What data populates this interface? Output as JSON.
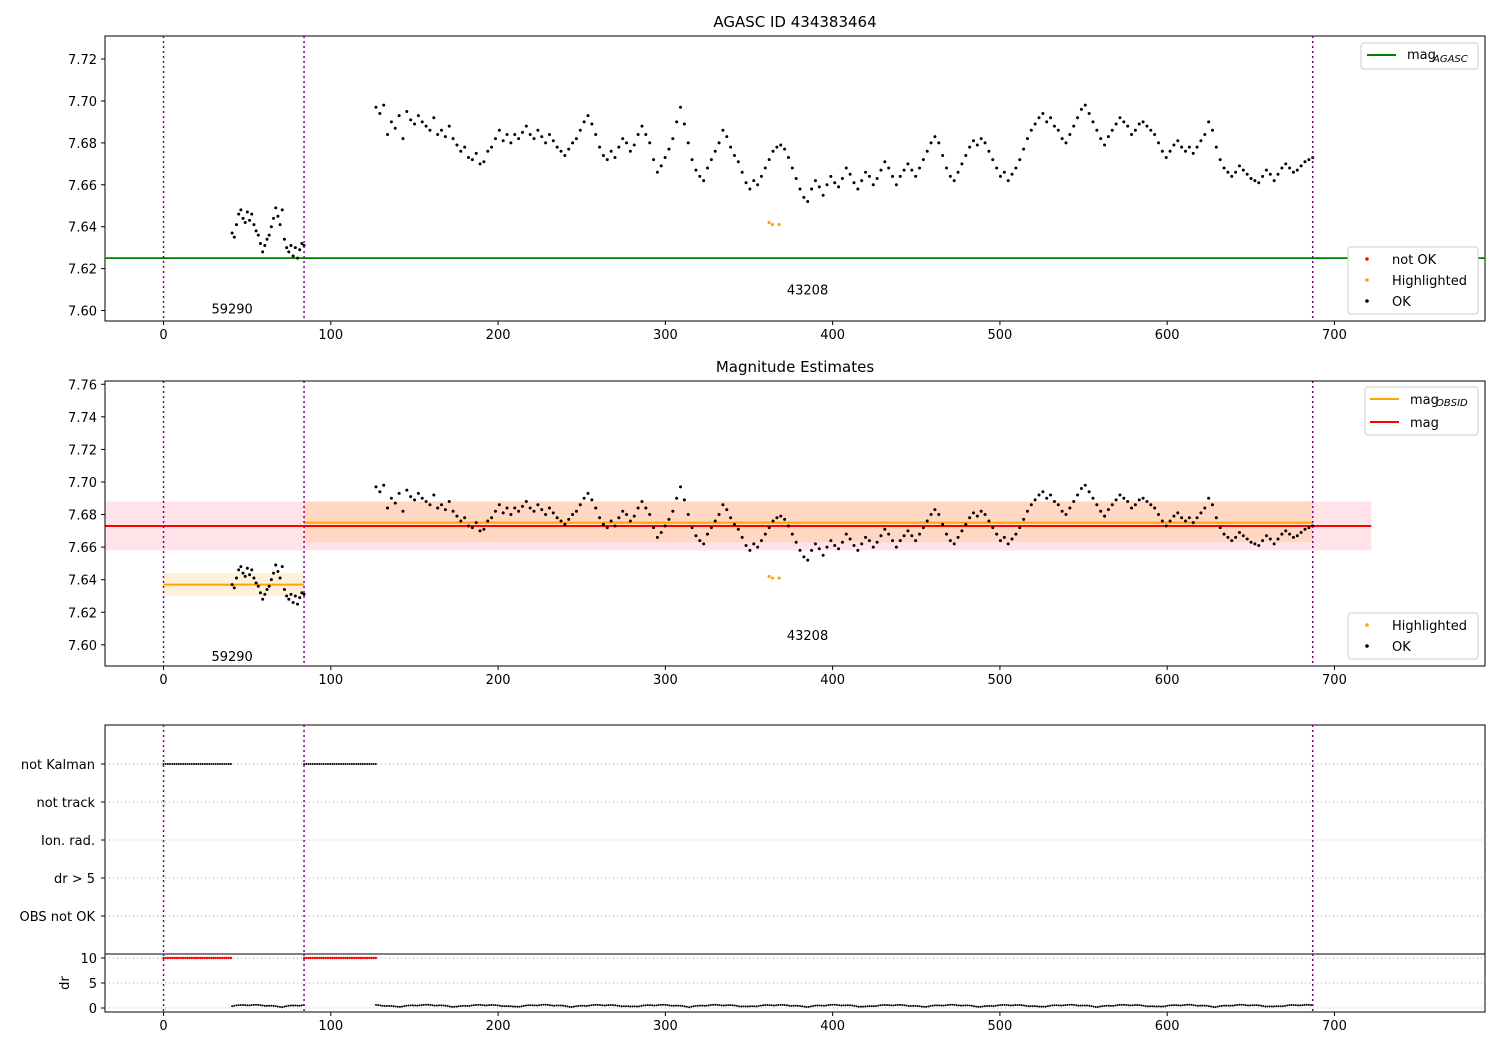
{
  "chart_data": [
    {
      "type": "scatter",
      "title": "AGASC ID 434383464",
      "xlim": [
        -35,
        790
      ],
      "ylim": [
        7.595,
        7.731
      ],
      "x_ticks": [
        "0",
        "100",
        "200",
        "300",
        "400",
        "500",
        "600",
        "700"
      ],
      "x_tick_values": [
        0,
        100,
        200,
        300,
        400,
        500,
        600,
        700
      ],
      "y_ticks": [
        "7.60",
        "7.62",
        "7.64",
        "7.66",
        "7.68",
        "7.70",
        "7.72"
      ],
      "y_tick_values": [
        7.6,
        7.62,
        7.64,
        7.66,
        7.68,
        7.7,
        7.72
      ],
      "obs_boundaries": [
        0,
        84,
        687
      ],
      "obs_labels": [
        {
          "text": "59290",
          "x": 41,
          "y": 7.601
        },
        {
          "text": "43208",
          "x": 385,
          "y": 7.61
        }
      ],
      "lines": [
        {
          "name": "mag",
          "subscript": "AGASC",
          "y": 7.625,
          "x0": -35,
          "x1": 790,
          "color": "#008000"
        }
      ],
      "legends": [
        {
          "placement": "top-right",
          "entries": [
            {
              "kind": "line",
              "label": "mag",
              "subscript": "AGASC",
              "color": "#008000"
            }
          ]
        },
        {
          "placement": "bottom-right",
          "entries": [
            {
              "kind": "point",
              "label": "not OK",
              "color": "#ff0000"
            },
            {
              "kind": "point",
              "label": "Highlighted",
              "color": "#ffa500"
            },
            {
              "kind": "point",
              "label": "OK",
              "color": "#000000"
            }
          ]
        }
      ],
      "highlighted_points": [
        [
          362,
          7.642
        ],
        [
          364,
          7.641
        ],
        [
          368,
          7.641
        ]
      ],
      "series_segments": [
        {
          "x0": 41,
          "x1": 84,
          "y": [
            7.637,
            7.635,
            7.641,
            7.646,
            7.648,
            7.644,
            7.642,
            7.647,
            7.643,
            7.646,
            7.641,
            7.638,
            7.636,
            7.632,
            7.628,
            7.631,
            7.634,
            7.636,
            7.64,
            7.644,
            7.649,
            7.645,
            7.641,
            7.648,
            7.634,
            7.63,
            7.628,
            7.631,
            7.626,
            7.63,
            7.625,
            7.629,
            7.632,
            7.631
          ]
        },
        {
          "x0": 127,
          "x1": 687,
          "y": [
            7.697,
            7.694,
            7.698,
            7.684,
            7.69,
            7.687,
            7.693,
            7.682,
            7.695,
            7.691,
            7.689,
            7.693,
            7.69,
            7.688,
            7.686,
            7.692,
            7.684,
            7.686,
            7.683,
            7.688,
            7.682,
            7.679,
            7.676,
            7.678,
            7.673,
            7.672,
            7.675,
            7.67,
            7.671,
            7.676,
            7.678,
            7.682,
            7.686,
            7.681,
            7.684,
            7.68,
            7.684,
            7.682,
            7.685,
            7.688,
            7.684,
            7.682,
            7.686,
            7.683,
            7.68,
            7.684,
            7.681,
            7.678,
            7.676,
            7.674,
            7.677,
            7.68,
            7.682,
            7.686,
            7.69,
            7.693,
            7.689,
            7.684,
            7.678,
            7.674,
            7.672,
            7.676,
            7.673,
            7.678,
            7.682,
            7.68,
            7.676,
            7.679,
            7.684,
            7.688,
            7.684,
            7.68,
            7.672,
            7.666,
            7.669,
            7.673,
            7.677,
            7.682,
            7.69,
            7.697,
            7.689,
            7.68,
            7.672,
            7.667,
            7.664,
            7.662,
            7.668,
            7.672,
            7.676,
            7.68,
            7.686,
            7.683,
            7.678,
            7.674,
            7.671,
            7.666,
            7.661,
            7.658,
            7.662,
            7.66,
            7.664,
            7.668,
            7.672,
            7.676,
            7.678,
            7.679,
            7.677,
            7.673,
            7.668,
            7.663,
            7.658,
            7.654,
            7.652,
            7.658,
            7.662,
            7.659,
            7.655,
            7.66,
            7.664,
            7.661,
            7.659,
            7.663,
            7.668,
            7.665,
            7.661,
            7.658,
            7.662,
            7.666,
            7.664,
            7.66,
            7.663,
            7.667,
            7.671,
            7.668,
            7.664,
            7.66,
            7.664,
            7.667,
            7.67,
            7.667,
            7.664,
            7.668,
            7.672,
            7.676,
            7.68,
            7.683,
            7.68,
            7.674,
            7.668,
            7.664,
            7.662,
            7.666,
            7.67,
            7.674,
            7.678,
            7.681,
            7.679,
            7.682,
            7.68,
            7.676,
            7.672,
            7.668,
            7.664,
            7.666,
            7.662,
            7.665,
            7.668,
            7.672,
            7.677,
            7.682,
            7.686,
            7.689,
            7.692,
            7.694,
            7.69,
            7.692,
            7.688,
            7.686,
            7.682,
            7.68,
            7.684,
            7.688,
            7.692,
            7.696,
            7.698,
            7.694,
            7.69,
            7.686,
            7.682,
            7.679,
            7.683,
            7.686,
            7.689,
            7.692,
            7.69,
            7.688,
            7.684,
            7.686,
            7.689,
            7.69,
            7.688,
            7.686,
            7.684,
            7.68,
            7.676,
            7.673,
            7.676,
            7.679,
            7.681,
            7.678,
            7.676,
            7.678,
            7.675,
            7.678,
            7.681,
            7.684,
            7.69,
            7.686,
            7.678,
            7.672,
            7.668,
            7.666,
            7.664,
            7.666,
            7.669,
            7.667,
            7.665,
            7.663,
            7.662,
            7.661,
            7.664,
            7.667,
            7.665,
            7.662,
            7.665,
            7.668,
            7.67,
            7.668,
            7.666,
            7.667,
            7.669,
            7.671,
            7.672,
            7.673
          ]
        }
      ]
    },
    {
      "type": "scatter",
      "title": "Magnitude Estimates",
      "xlim": [
        -35,
        790
      ],
      "ylim": [
        7.587,
        7.762
      ],
      "x_ticks": [
        "0",
        "100",
        "200",
        "300",
        "400",
        "500",
        "600",
        "700"
      ],
      "x_tick_values": [
        0,
        100,
        200,
        300,
        400,
        500,
        600,
        700
      ],
      "y_ticks": [
        "7.60",
        "7.62",
        "7.64",
        "7.66",
        "7.68",
        "7.70",
        "7.72",
        "7.74",
        "7.76"
      ],
      "y_tick_values": [
        7.6,
        7.62,
        7.64,
        7.66,
        7.68,
        7.7,
        7.72,
        7.74,
        7.76
      ],
      "obs_boundaries": [
        0,
        84,
        687
      ],
      "obs_labels": [
        {
          "text": "59290",
          "x": 41,
          "y": 7.593
        },
        {
          "text": "43208",
          "x": 385,
          "y": 7.606
        }
      ],
      "bands": [
        {
          "x0": -35,
          "x1": 722,
          "y0": 7.658,
          "y1": 7.688,
          "color": "#ffc0cb"
        },
        {
          "x0": 0,
          "x1": 84,
          "y0": 7.63,
          "y1": 7.644,
          "color": "#ffdead"
        },
        {
          "x0": 84,
          "x1": 687,
          "y0": 7.663,
          "y1": 7.688,
          "color": "#ffc896"
        }
      ],
      "lines": [
        {
          "name": "mag",
          "y": 7.673,
          "x0": -35,
          "x1": 722,
          "color": "#ff0000"
        },
        {
          "name": "mag",
          "subscript": "OBSID",
          "y": 7.637,
          "x0": 0,
          "x1": 84,
          "color": "#ffa500"
        },
        {
          "name": "mag",
          "subscript": "OBSID",
          "y": 7.675,
          "x0": 84,
          "x1": 687,
          "color": "#ffa500"
        }
      ],
      "legends": [
        {
          "placement": "top-right",
          "entries": [
            {
              "kind": "line",
              "label": "mag",
              "subscript": "OBSID",
              "color": "#ffa500"
            },
            {
              "kind": "line",
              "label": "mag",
              "color": "#ff0000"
            }
          ]
        },
        {
          "placement": "bottom-right",
          "entries": [
            {
              "kind": "point",
              "label": "Highlighted",
              "color": "#ffa500"
            },
            {
              "kind": "point",
              "label": "OK",
              "color": "#000000"
            }
          ]
        }
      ],
      "reuse_points_from_panel": 0
    },
    {
      "type": "scatter",
      "categories": [
        "not Kalman",
        "not track",
        "Ion. rad.",
        "dr > 5",
        "OBS not OK"
      ],
      "category_segments": [
        {
          "category": "not Kalman",
          "ranges": [
            [
              0,
              41
            ],
            [
              84,
              127
            ]
          ]
        },
        {
          "category": "not track",
          "ranges": []
        },
        {
          "category": "Ion. rad.",
          "ranges": []
        },
        {
          "category": "dr > 5",
          "ranges": []
        },
        {
          "category": "OBS not OK",
          "ranges": []
        }
      ],
      "obs_boundaries": [
        0,
        84,
        687
      ]
    },
    {
      "type": "scatter",
      "ylabel": "dr",
      "xlim": [
        -35,
        790
      ],
      "ylim": [
        -0.8,
        10.8
      ],
      "x_ticks": [
        "0",
        "100",
        "200",
        "300",
        "400",
        "500",
        "600",
        "700"
      ],
      "x_tick_values": [
        0,
        100,
        200,
        300,
        400,
        500,
        600,
        700
      ],
      "y_ticks": [
        "0",
        "5",
        "10"
      ],
      "y_tick_values": [
        0,
        5,
        10
      ],
      "clipped_at": 10,
      "clipped_ranges": [
        [
          0,
          41
        ],
        [
          84,
          127
        ]
      ],
      "near_zero_ranges": [
        [
          41,
          84
        ],
        [
          127,
          687
        ]
      ],
      "obs_boundaries": [
        0,
        84,
        687
      ]
    }
  ]
}
